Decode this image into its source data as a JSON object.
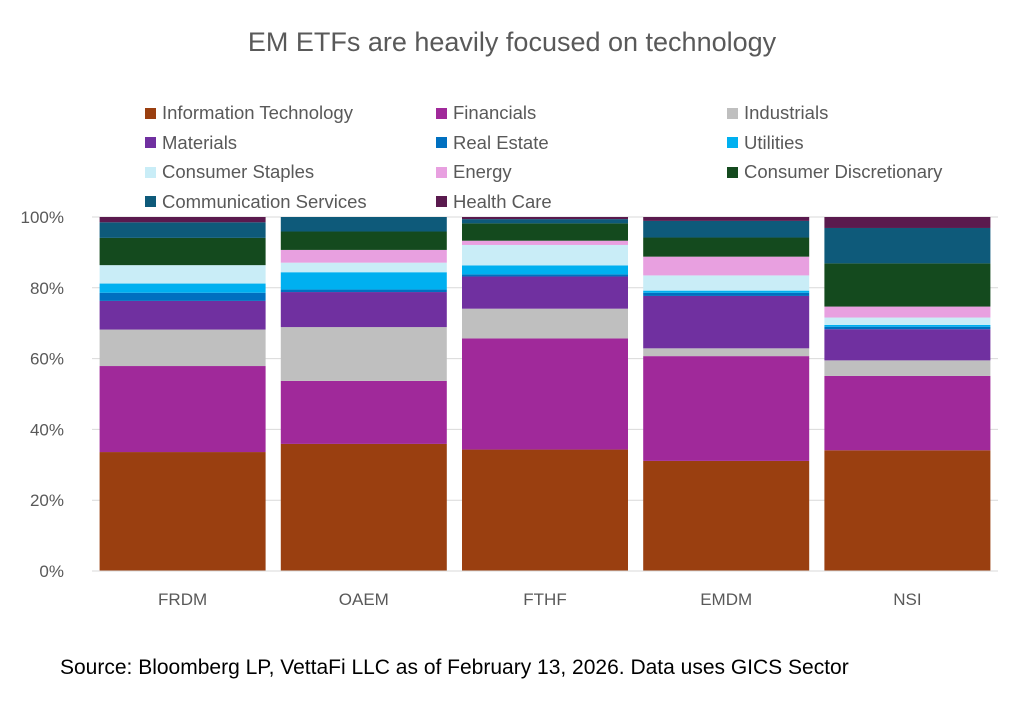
{
  "chart_data": {
    "type": "bar",
    "stacked": true,
    "title": "EM ETFs are heavily focused on technology",
    "xlabel": "",
    "ylabel": "",
    "ylim": [
      0,
      100
    ],
    "y_ticks": [
      "0%",
      "20%",
      "40%",
      "60%",
      "80%",
      "100%"
    ],
    "categories": [
      "FRDM",
      "OAEM",
      "FTHF",
      "EMDM",
      "NSI"
    ],
    "legend_position": "top",
    "grid": true,
    "series": [
      {
        "name": "Information Technology",
        "color": "#9A3F10",
        "values": [
          33.6,
          35.9,
          34.3,
          31.1,
          34.1
        ]
      },
      {
        "name": "Financials",
        "color": "#A0299A",
        "values": [
          24.3,
          17.8,
          31.4,
          29.6,
          21.0
        ]
      },
      {
        "name": "Industrials",
        "color": "#BFBFBF",
        "values": [
          10.3,
          15.2,
          8.4,
          2.2,
          4.4
        ]
      },
      {
        "name": "Materials",
        "color": "#7030A0",
        "values": [
          8.1,
          9.9,
          9.1,
          14.8,
          8.8
        ]
      },
      {
        "name": "Real Estate",
        "color": "#0070C0",
        "values": [
          2.3,
          0.7,
          0.6,
          0.9,
          0.7
        ]
      },
      {
        "name": "Utilities",
        "color": "#00B0F0",
        "values": [
          2.6,
          4.9,
          2.5,
          0.6,
          0.5
        ]
      },
      {
        "name": "Consumer Staples",
        "color": "#C9EDF7",
        "values": [
          5.2,
          2.7,
          5.8,
          4.3,
          2.1
        ]
      },
      {
        "name": "Energy",
        "color": "#E8A0E0",
        "values": [
          0.0,
          3.6,
          1.2,
          5.3,
          3.1
        ]
      },
      {
        "name": "Consumer Discretionary",
        "color": "#144A1E",
        "values": [
          7.7,
          5.2,
          4.9,
          5.4,
          12.2
        ]
      },
      {
        "name": "Communication Services",
        "color": "#0E5A7A",
        "values": [
          4.4,
          4.1,
          1.2,
          4.7,
          10.0
        ]
      },
      {
        "name": "Health Care",
        "color": "#5A1A4E",
        "values": [
          1.5,
          0.0,
          0.6,
          1.1,
          3.1
        ]
      }
    ]
  },
  "source_note": "Source: Bloomberg LP, VettaFi LLC as of February 13, 2026. Data uses GICS Sector"
}
